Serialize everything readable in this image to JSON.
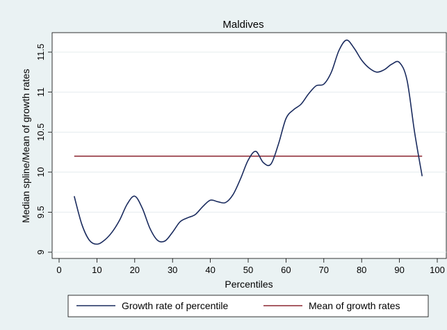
{
  "chart_data": {
    "type": "line",
    "title": "Maldives",
    "xlabel": "Percentiles",
    "ylabel": "Median spline/Mean of growth rates",
    "xlim": [
      0,
      100
    ],
    "ylim": [
      8.95,
      11.7
    ],
    "x_ticks": [
      0,
      10,
      20,
      30,
      40,
      50,
      60,
      70,
      80,
      90,
      100
    ],
    "y_ticks": [
      9,
      9.5,
      10,
      10.5,
      11,
      11.5
    ],
    "x_tick_labels": [
      "0",
      "10",
      "20",
      "30",
      "40",
      "50",
      "60",
      "70",
      "80",
      "90",
      "100"
    ],
    "y_tick_labels": [
      "9",
      "9.5",
      "10",
      "10.5",
      "11",
      "11.5"
    ],
    "grid": true,
    "legend_position": "bottom",
    "series": [
      {
        "name": "Growth rate of percentile",
        "color": "#1a2b5e",
        "x": [
          4,
          6,
          8,
          10,
          12,
          14,
          16,
          18,
          20,
          22,
          24,
          26,
          28,
          30,
          32,
          34,
          36,
          38,
          40,
          42,
          44,
          46,
          48,
          50,
          52,
          54,
          56,
          58,
          60,
          62,
          64,
          66,
          68,
          70,
          72,
          74,
          76,
          78,
          80,
          82,
          84,
          86,
          88,
          90,
          92,
          94,
          96
        ],
        "y": [
          9.7,
          9.35,
          9.15,
          9.1,
          9.15,
          9.25,
          9.4,
          9.6,
          9.7,
          9.55,
          9.3,
          9.15,
          9.14,
          9.25,
          9.38,
          9.43,
          9.47,
          9.57,
          9.65,
          9.63,
          9.62,
          9.72,
          9.92,
          10.15,
          10.26,
          10.12,
          10.1,
          10.35,
          10.67,
          10.78,
          10.85,
          10.98,
          11.08,
          11.1,
          11.25,
          11.52,
          11.65,
          11.55,
          11.4,
          11.3,
          11.25,
          11.28,
          11.35,
          11.37,
          11.15,
          10.5,
          9.95
        ]
      },
      {
        "name": "Mean of growth rates",
        "color": "#8b2631",
        "x": [
          4,
          96
        ],
        "y": [
          10.2,
          10.2
        ]
      }
    ]
  }
}
